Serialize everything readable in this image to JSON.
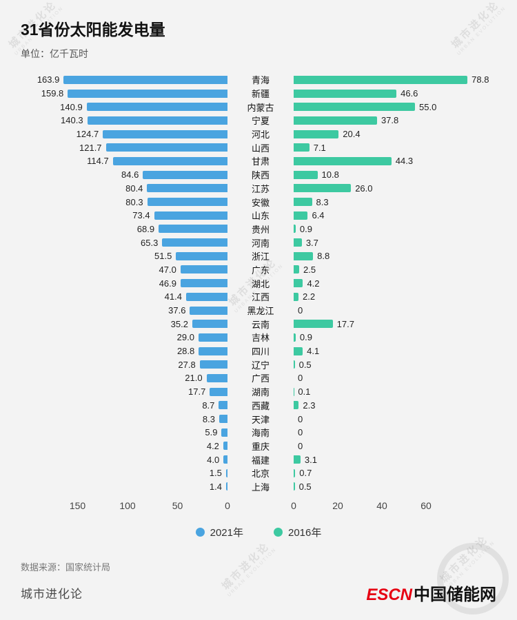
{
  "header": {
    "title": "31省份太阳能发电量",
    "unit": "单位：亿千瓦时"
  },
  "chart_data": {
    "type": "bar",
    "variant": "diverging-horizontal (tornado)",
    "title": "31省份太阳能发电量",
    "unit_label": "单位：亿千瓦时",
    "categories": [
      "青海",
      "新疆",
      "内蒙古",
      "宁夏",
      "河北",
      "山西",
      "甘肃",
      "陕西",
      "江苏",
      "安徽",
      "山东",
      "贵州",
      "河南",
      "浙江",
      "广东",
      "湖北",
      "江西",
      "黑龙江",
      "云南",
      "吉林",
      "四川",
      "辽宁",
      "广西",
      "湖南",
      "西藏",
      "天津",
      "海南",
      "重庆",
      "福建",
      "北京",
      "上海"
    ],
    "series": [
      {
        "name": "2021年",
        "color": "#4aa4e0",
        "side": "left",
        "values": [
          163.9,
          159.8,
          140.9,
          140.3,
          124.7,
          121.7,
          114.7,
          84.6,
          80.4,
          80.3,
          73.4,
          68.9,
          65.3,
          51.5,
          47.0,
          46.9,
          41.4,
          37.6,
          35.2,
          29.0,
          28.8,
          27.8,
          21.0,
          17.7,
          8.7,
          8.3,
          5.9,
          4.2,
          4.0,
          1.5,
          1.4
        ],
        "value_labels": [
          "163.9",
          "159.8",
          "140.9",
          "140.3",
          "124.7",
          "121.7",
          "114.7",
          "84.6",
          "80.4",
          "80.3",
          "73.4",
          "68.9",
          "65.3",
          "51.5",
          "47.0",
          "46.9",
          "41.4",
          "37.6",
          "35.2",
          "29.0",
          "28.8",
          "27.8",
          "21.0",
          "17.7",
          "8.7",
          "8.3",
          "5.9",
          "4.2",
          "4.0",
          "1.5",
          "1.4"
        ]
      },
      {
        "name": "2016年",
        "color": "#3dc9a1",
        "side": "right",
        "values": [
          78.8,
          46.6,
          55.0,
          37.8,
          20.4,
          7.1,
          44.3,
          10.8,
          26.0,
          8.3,
          6.4,
          0.9,
          3.7,
          8.8,
          2.5,
          4.2,
          2.2,
          0,
          17.7,
          0.9,
          4.1,
          0.5,
          0,
          0.1,
          2.3,
          0,
          0,
          0,
          3.1,
          0.7,
          0.5
        ],
        "value_labels": [
          "78.8",
          "46.6",
          "55.0",
          "37.8",
          "20.4",
          "7.1",
          "44.3",
          "10.8",
          "26.0",
          "8.3",
          "6.4",
          "0.9",
          "3.7",
          "8.8",
          "2.5",
          "4.2",
          "2.2",
          "0",
          "17.7",
          "0.9",
          "4.1",
          "0.5",
          "0",
          "0.1",
          "2.3",
          "0",
          "0",
          "0",
          "3.1",
          "0.7",
          "0.5"
        ]
      }
    ],
    "left_axis_ticks": [
      150,
      100,
      50,
      0
    ],
    "right_axis_ticks": [
      0,
      20,
      40,
      60
    ],
    "left_axis_range": [
      0,
      170
    ],
    "right_axis_range": [
      0,
      80
    ],
    "grid": false,
    "legend_position": "bottom-center"
  },
  "legend": [
    {
      "label": "2021年",
      "color": "#4aa4e0"
    },
    {
      "label": "2016年",
      "color": "#3dc9a1"
    }
  ],
  "source": "数据来源：国家统计局",
  "footer": {
    "brand": "城市进化论",
    "logo_red": "ESCN",
    "logo_black": "中国储能网"
  },
  "watermark": {
    "line1": "城市进化论",
    "line2": "URBAN EVOLUTION"
  }
}
